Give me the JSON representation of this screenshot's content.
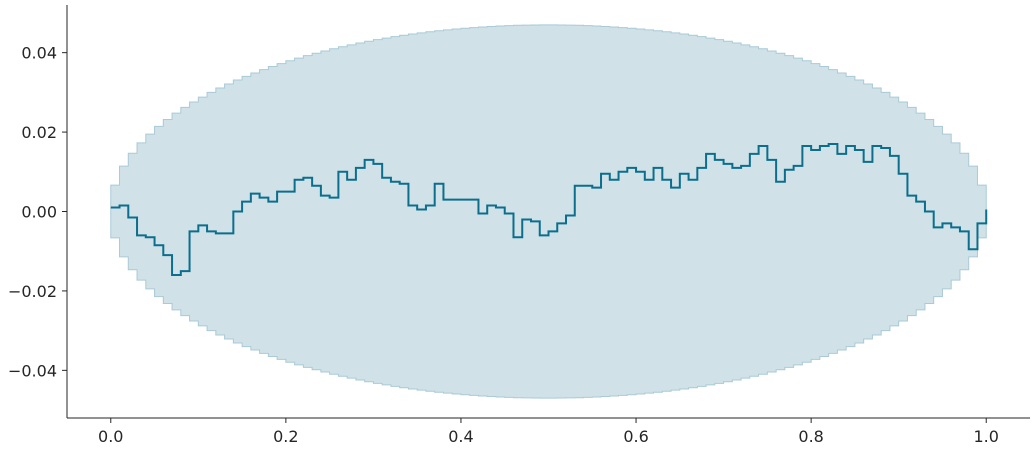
{
  "chart_data": {
    "type": "line",
    "title": "",
    "xlabel": "",
    "ylabel": "",
    "xlim": [
      -0.05,
      1.05
    ],
    "ylim": [
      -0.052,
      0.052
    ],
    "grid": false,
    "x_ticks": [
      0.0,
      0.2,
      0.4,
      0.6,
      0.8,
      1.0
    ],
    "x_tick_labels": [
      "0.0",
      "0.2",
      "0.4",
      "0.6",
      "0.8",
      "1.0"
    ],
    "y_ticks": [
      -0.04,
      -0.02,
      0.0,
      0.02,
      0.04
    ],
    "y_tick_labels": [
      "−0.04",
      "−0.02",
      "0.00",
      "0.02",
      "0.04"
    ],
    "colors": {
      "line": "#0b6e8c",
      "band": "#a9cad6"
    },
    "band": {
      "type": "step",
      "half_width_scale": 0.047
    },
    "series": [
      {
        "step": "post",
        "x": [
          0.0,
          0.01,
          0.02,
          0.03,
          0.04,
          0.05,
          0.06,
          0.07,
          0.08,
          0.09,
          0.1,
          0.11,
          0.12,
          0.13,
          0.14,
          0.15,
          0.16,
          0.17,
          0.18,
          0.19,
          0.2,
          0.21,
          0.22,
          0.23,
          0.24,
          0.25,
          0.26,
          0.27,
          0.28,
          0.29,
          0.3,
          0.31,
          0.32,
          0.33,
          0.34,
          0.35,
          0.36,
          0.37,
          0.38,
          0.39,
          0.4,
          0.41,
          0.42,
          0.43,
          0.44,
          0.45,
          0.46,
          0.47,
          0.48,
          0.49,
          0.5,
          0.51,
          0.52,
          0.53,
          0.54,
          0.55,
          0.56,
          0.57,
          0.58,
          0.59,
          0.6,
          0.61,
          0.62,
          0.63,
          0.64,
          0.65,
          0.66,
          0.67,
          0.68,
          0.69,
          0.7,
          0.71,
          0.72,
          0.73,
          0.74,
          0.75,
          0.76,
          0.77,
          0.78,
          0.79,
          0.8,
          0.81,
          0.82,
          0.83,
          0.84,
          0.85,
          0.86,
          0.87,
          0.88,
          0.89,
          0.9,
          0.91,
          0.92,
          0.93,
          0.94,
          0.95,
          0.96,
          0.97,
          0.98,
          0.99,
          1.0
        ],
        "y": [
          0.001,
          0.0015,
          -0.0015,
          -0.006,
          -0.0065,
          -0.0085,
          -0.011,
          -0.016,
          -0.015,
          -0.005,
          -0.0035,
          -0.005,
          -0.0055,
          -0.0055,
          0.0,
          0.0025,
          0.0045,
          0.0035,
          0.0025,
          0.005,
          0.005,
          0.008,
          0.0085,
          0.0065,
          0.004,
          0.0035,
          0.01,
          0.008,
          0.011,
          0.013,
          0.012,
          0.0085,
          0.0075,
          0.007,
          0.0015,
          0.0005,
          0.0015,
          0.007,
          0.003,
          0.003,
          0.003,
          0.003,
          -0.0005,
          0.0015,
          0.001,
          -0.0005,
          -0.0065,
          -0.002,
          -0.0025,
          -0.006,
          -0.005,
          -0.003,
          -0.001,
          0.0065,
          0.0065,
          0.006,
          0.0095,
          0.008,
          0.01,
          0.011,
          0.01,
          0.008,
          0.011,
          0.008,
          0.006,
          0.0095,
          0.008,
          0.011,
          0.0145,
          0.013,
          0.012,
          0.011,
          0.0115,
          0.0145,
          0.0165,
          0.013,
          0.0075,
          0.0105,
          0.0115,
          0.0165,
          0.0155,
          0.0165,
          0.017,
          0.0145,
          0.0165,
          0.0155,
          0.0125,
          0.0165,
          0.016,
          0.014,
          0.0095,
          0.004,
          0.0025,
          0.0,
          -0.004,
          -0.003,
          -0.004,
          -0.005,
          -0.0095,
          -0.003,
          0.0005
        ]
      }
    ]
  }
}
